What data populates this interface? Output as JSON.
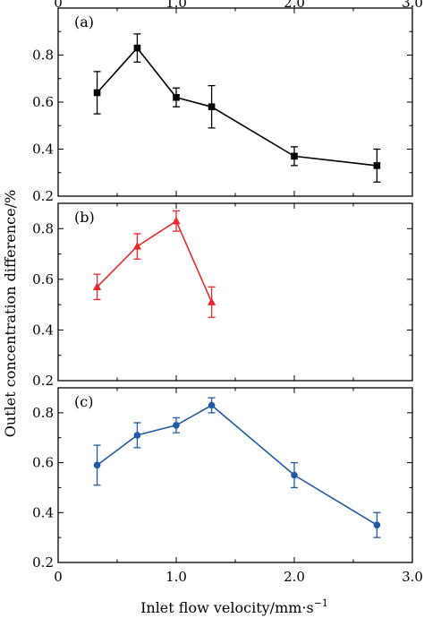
{
  "chart_data": {
    "type": "line",
    "xlabel": "Inlet flow velocity/mm·s",
    "xlabel_superscript": "−1",
    "ylabel": "Outlet concentration difference/%",
    "xlim": [
      0,
      3.0
    ],
    "x_ticks": [
      0,
      1.0,
      2.0,
      3.0
    ],
    "x_tick_labels": [
      "0",
      "1.0",
      "2.0",
      "3.0"
    ],
    "x_tick_labels_top": [
      "0",
      "1.0",
      "2.0",
      "3.0"
    ],
    "y_ticks": [
      0.2,
      0.4,
      0.6,
      0.8
    ],
    "y_tick_labels": [
      "0.2",
      "0.4",
      "0.6",
      "0.8"
    ],
    "grid": false,
    "panels": [
      {
        "label": "(a)",
        "ylim": [
          0.2,
          1.0
        ],
        "color": "#000000",
        "marker": "square",
        "points": [
          {
            "x": 0.33,
            "y": 0.64,
            "err": 0.09
          },
          {
            "x": 0.67,
            "y": 0.83,
            "err": 0.06
          },
          {
            "x": 1.0,
            "y": 0.62,
            "err": 0.04
          },
          {
            "x": 1.3,
            "y": 0.58,
            "err": 0.09
          },
          {
            "x": 2.0,
            "y": 0.37,
            "err": 0.04
          },
          {
            "x": 2.7,
            "y": 0.33,
            "err": 0.07
          }
        ]
      },
      {
        "label": "(b)",
        "ylim": [
          0.2,
          0.9
        ],
        "color": "#e8282b",
        "marker": "triangle",
        "points": [
          {
            "x": 0.33,
            "y": 0.57,
            "err": 0.05
          },
          {
            "x": 0.67,
            "y": 0.73,
            "err": 0.05
          },
          {
            "x": 1.0,
            "y": 0.83,
            "err": 0.04
          },
          {
            "x": 1.3,
            "y": 0.51,
            "err": 0.06
          }
        ]
      },
      {
        "label": "(c)",
        "ylim": [
          0.2,
          0.9
        ],
        "color": "#1f5aa6",
        "marker": "circle",
        "points": [
          {
            "x": 0.33,
            "y": 0.59,
            "err": 0.08
          },
          {
            "x": 0.67,
            "y": 0.71,
            "err": 0.05
          },
          {
            "x": 1.0,
            "y": 0.75,
            "err": 0.03
          },
          {
            "x": 1.3,
            "y": 0.83,
            "err": 0.03
          },
          {
            "x": 2.0,
            "y": 0.55,
            "err": 0.05
          },
          {
            "x": 2.7,
            "y": 0.35,
            "err": 0.05
          }
        ]
      }
    ]
  }
}
